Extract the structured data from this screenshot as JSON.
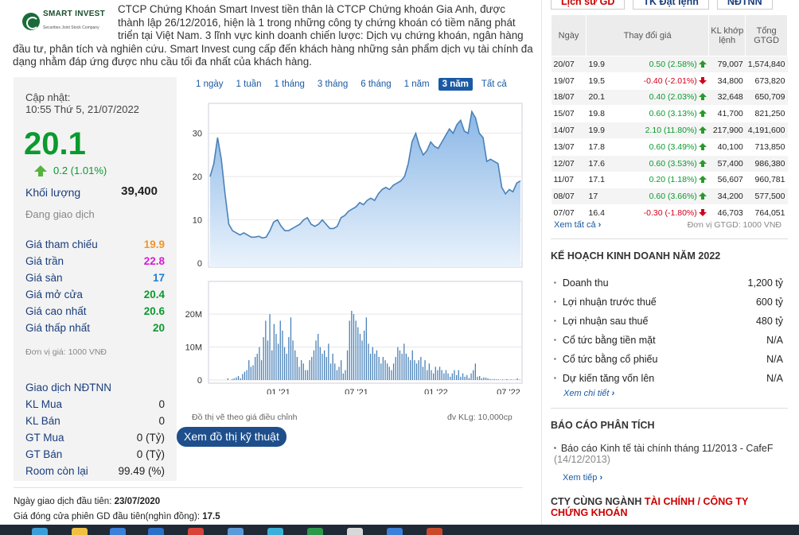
{
  "intro": {
    "logo_name": "SMART INVEST",
    "logo_sub": "Securities Joint Stock Company",
    "text": "CTCP Chứng Khoán Smart Invest tiền thân là CTCP Chứng khoán Gia Anh, được thành lập 26/12/2016, hiện là 1 trong những công ty chứng khoán có tiềm năng phát triển tại Việt Nam. 3 lĩnh vực kinh doanh chiến lược: Dịch vụ chứng khoán, ngân hàng đầu tư, phân tích và nghiên cứu. Smart Invest cung cấp đến khách hàng những sản phẩm dịch vụ tài chính đa dạng nhằm đáp ứng được nhu cầu tối đa nhất của khách hàng."
  },
  "panel": {
    "update_label": "Cập nhật:",
    "update_time": "10:55 Thứ 5, 21/07/2022",
    "price": "20.1",
    "change": "0.2 (1.01%)",
    "volume_label": "Khối lượng",
    "volume": "39,400",
    "status": "Đang giao dịch",
    "stats": [
      {
        "label": "Giá tham chiếu",
        "value": "19.9",
        "color": "#f0962a"
      },
      {
        "label": "Giá trần",
        "value": "22.8",
        "color": "#d41ed4"
      },
      {
        "label": "Giá sàn",
        "value": "17",
        "color": "#1e7fd4"
      },
      {
        "label": "Giá mở cửa",
        "value": "20.4",
        "color": "#0a9a2e"
      },
      {
        "label": "Giá cao nhất",
        "value": "20.6",
        "color": "#0a9a2e"
      },
      {
        "label": "Giá thấp nhất",
        "value": "20",
        "color": "#0a9a2e"
      }
    ],
    "unit": "Đơn vị giá: 1000 VNĐ",
    "foreign_title": "Giao dịch NĐTNN",
    "foreign": [
      {
        "label": "KL Mua",
        "value": "0"
      },
      {
        "label": "KL Bán",
        "value": "0"
      },
      {
        "label": "GT Mua",
        "value": "0 (Tỷ)"
      },
      {
        "label": "GT Bán",
        "value": "0 (Tỷ)"
      },
      {
        "label": "Room còn lại",
        "value": "99.49 (%)"
      }
    ]
  },
  "ranges": [
    "1 ngày",
    "1 tuần",
    "1 tháng",
    "3 tháng",
    "6 tháng",
    "1 năm",
    "3 năm",
    "Tất cả"
  ],
  "active_range": "3 năm",
  "chart_data": [
    {
      "type": "area",
      "title": "",
      "yticks": [
        0,
        10,
        20,
        30
      ],
      "ylim": [
        0,
        36
      ],
      "x_tick_labels": [
        "01 '21",
        "07 '21",
        "01 '22",
        "07 '22"
      ],
      "values": [
        20,
        23,
        29,
        24,
        16,
        9,
        7.5,
        7,
        6.5,
        7,
        6.5,
        6,
        6,
        6.2,
        5.8,
        6,
        7.5,
        9.5,
        10,
        8.5,
        7.5,
        7.5,
        8,
        8.5,
        9,
        10,
        10.5,
        9,
        8.5,
        9,
        10,
        9,
        8,
        8,
        8.5,
        10.5,
        11,
        12,
        12.5,
        13,
        14,
        13.5,
        14.5,
        15,
        14.5,
        16,
        17,
        17.5,
        17,
        18,
        18.5,
        19,
        20,
        23,
        28,
        30,
        27,
        25,
        26,
        28,
        27,
        26.5,
        28,
        29.5,
        31,
        30,
        32,
        33,
        30.5,
        30,
        35,
        33.5,
        30,
        29,
        23.5,
        24,
        23.5,
        23,
        17.5,
        16,
        17,
        16.5,
        18.5,
        19
      ]
    },
    {
      "type": "bar",
      "title": "",
      "yticks": [
        "0",
        "10M",
        "20M"
      ],
      "ylim": [
        0,
        28
      ],
      "x_tick_labels": [
        "01 '21",
        "07 '21",
        "01 '22",
        "07 '22"
      ],
      "values": [
        0,
        0,
        0,
        0,
        0,
        0,
        0,
        0,
        0.5,
        0,
        0.3,
        0.5,
        0.8,
        1.2,
        0.5,
        1.8,
        2.5,
        3,
        6,
        4,
        4.5,
        7,
        8,
        10,
        6,
        13,
        18,
        12,
        20,
        9,
        17,
        14,
        11,
        18,
        15,
        10,
        8,
        13,
        19,
        12,
        9,
        7,
        4,
        6,
        5,
        3,
        3,
        6,
        7,
        9,
        12,
        14,
        10,
        8,
        9,
        7,
        11,
        5,
        8,
        5,
        3,
        4,
        6,
        2,
        3,
        9,
        18,
        21,
        20,
        18,
        16,
        14,
        12,
        15,
        19,
        11,
        8,
        10,
        8,
        9,
        7,
        5,
        7,
        6,
        5,
        4,
        3,
        5,
        7,
        10,
        9,
        8,
        11,
        8,
        7,
        6,
        9,
        6,
        5,
        6,
        7,
        4,
        6,
        3,
        5,
        3,
        2,
        4,
        3,
        4,
        3,
        2,
        3,
        2,
        1,
        2,
        3,
        1.5,
        3,
        1,
        2,
        1,
        1.5,
        0.6,
        2,
        3,
        5,
        1,
        1.2,
        0.5,
        0.8,
        0.7,
        0.5,
        0.3,
        0.2,
        0.3,
        0.2,
        0.2,
        0.1,
        0.2,
        0.1,
        0.3,
        0.1,
        0.2,
        0.1,
        0.1,
        0.5,
        0.1
      ]
    }
  ],
  "chart_note": "Đồ thị vẽ theo giá điều chỉnh",
  "chart_unit": "đv KLg: 10,000cp",
  "tech_button": "Xem đồ thị kỹ thuật",
  "first_day": {
    "label": "Ngày giao dịch đầu tiên: ",
    "value": "23/07/2020"
  },
  "first_close": {
    "label": "Giá đóng cửa phiên GD đầu tiên(nghìn đồng): ",
    "value": "17.5"
  },
  "right": {
    "tabs": [
      "Lịch sử GD",
      "TK Đặt lệnh",
      "NĐTNN"
    ],
    "headers": [
      "Ngày",
      "Thay đổi giá",
      "KL khớp lệnh",
      "Tổng GTGD"
    ],
    "rows": [
      {
        "date": "20/07",
        "price": "19.9",
        "change": "0.50 (2.58%)",
        "dir": "up",
        "vol": "79,007",
        "total": "1,574,840"
      },
      {
        "date": "19/07",
        "price": "19.5",
        "change": "-0.40 (-2.01%)",
        "dir": "down",
        "vol": "34,800",
        "total": "673,820"
      },
      {
        "date": "18/07",
        "price": "20.1",
        "change": "0.40 (2.03%)",
        "dir": "up",
        "vol": "32,648",
        "total": "650,709"
      },
      {
        "date": "15/07",
        "price": "19.8",
        "change": "0.60 (3.13%)",
        "dir": "up",
        "vol": "41,700",
        "total": "821,250"
      },
      {
        "date": "14/07",
        "price": "19.9",
        "change": "2.10 (11.80%)",
        "dir": "up",
        "vol": "217,900",
        "total": "4,191,600"
      },
      {
        "date": "13/07",
        "price": "17.8",
        "change": "0.60 (3.49%)",
        "dir": "up",
        "vol": "40,100",
        "total": "713,850"
      },
      {
        "date": "12/07",
        "price": "17.6",
        "change": "0.60 (3.53%)",
        "dir": "up",
        "vol": "57,400",
        "total": "986,380"
      },
      {
        "date": "11/07",
        "price": "17.1",
        "change": "0.20 (1.18%)",
        "dir": "up",
        "vol": "56,607",
        "total": "960,781"
      },
      {
        "date": "08/07",
        "price": "17",
        "change": "0.60 (3.66%)",
        "dir": "up",
        "vol": "34,200",
        "total": "577,500"
      },
      {
        "date": "07/07",
        "price": "16.4",
        "change": "-0.30 (-1.80%)",
        "dir": "down",
        "vol": "46,703",
        "total": "764,051"
      }
    ],
    "see_all": "Xem tất cả",
    "gtgd_unit": "Đơn vị GTGD: 1000 VNĐ",
    "plan_title": "KẾ HOẠCH KINH DOANH NĂM 2022",
    "plan": [
      {
        "label": "Doanh thu",
        "value": "1,200 tỷ"
      },
      {
        "label": "Lợi nhuận trước thuế",
        "value": "600 tỷ"
      },
      {
        "label": "Lợi nhuận sau thuế",
        "value": "480 tỷ"
      },
      {
        "label": "Cổ tức bằng tiền mặt",
        "value": "N/A"
      },
      {
        "label": "Cổ tức bằng cổ phiếu",
        "value": "N/A"
      },
      {
        "label": "Dự kiến tăng vốn lên",
        "value": "N/A"
      }
    ],
    "see_detail": "Xem chi tiết",
    "report_title": "BÁO CÁO PHÂN TÍCH",
    "report_text": "Báo cáo Kinh tế tài chính tháng 11/2013 - CafeF",
    "report_date": "(14/12/2013)",
    "see_more": "Xem tiếp",
    "related_prefix": "CTY CÙNG NGÀNH ",
    "related_red": "TÀI CHÍNH / CÔNG TY CHỨNG KHOÁN"
  }
}
